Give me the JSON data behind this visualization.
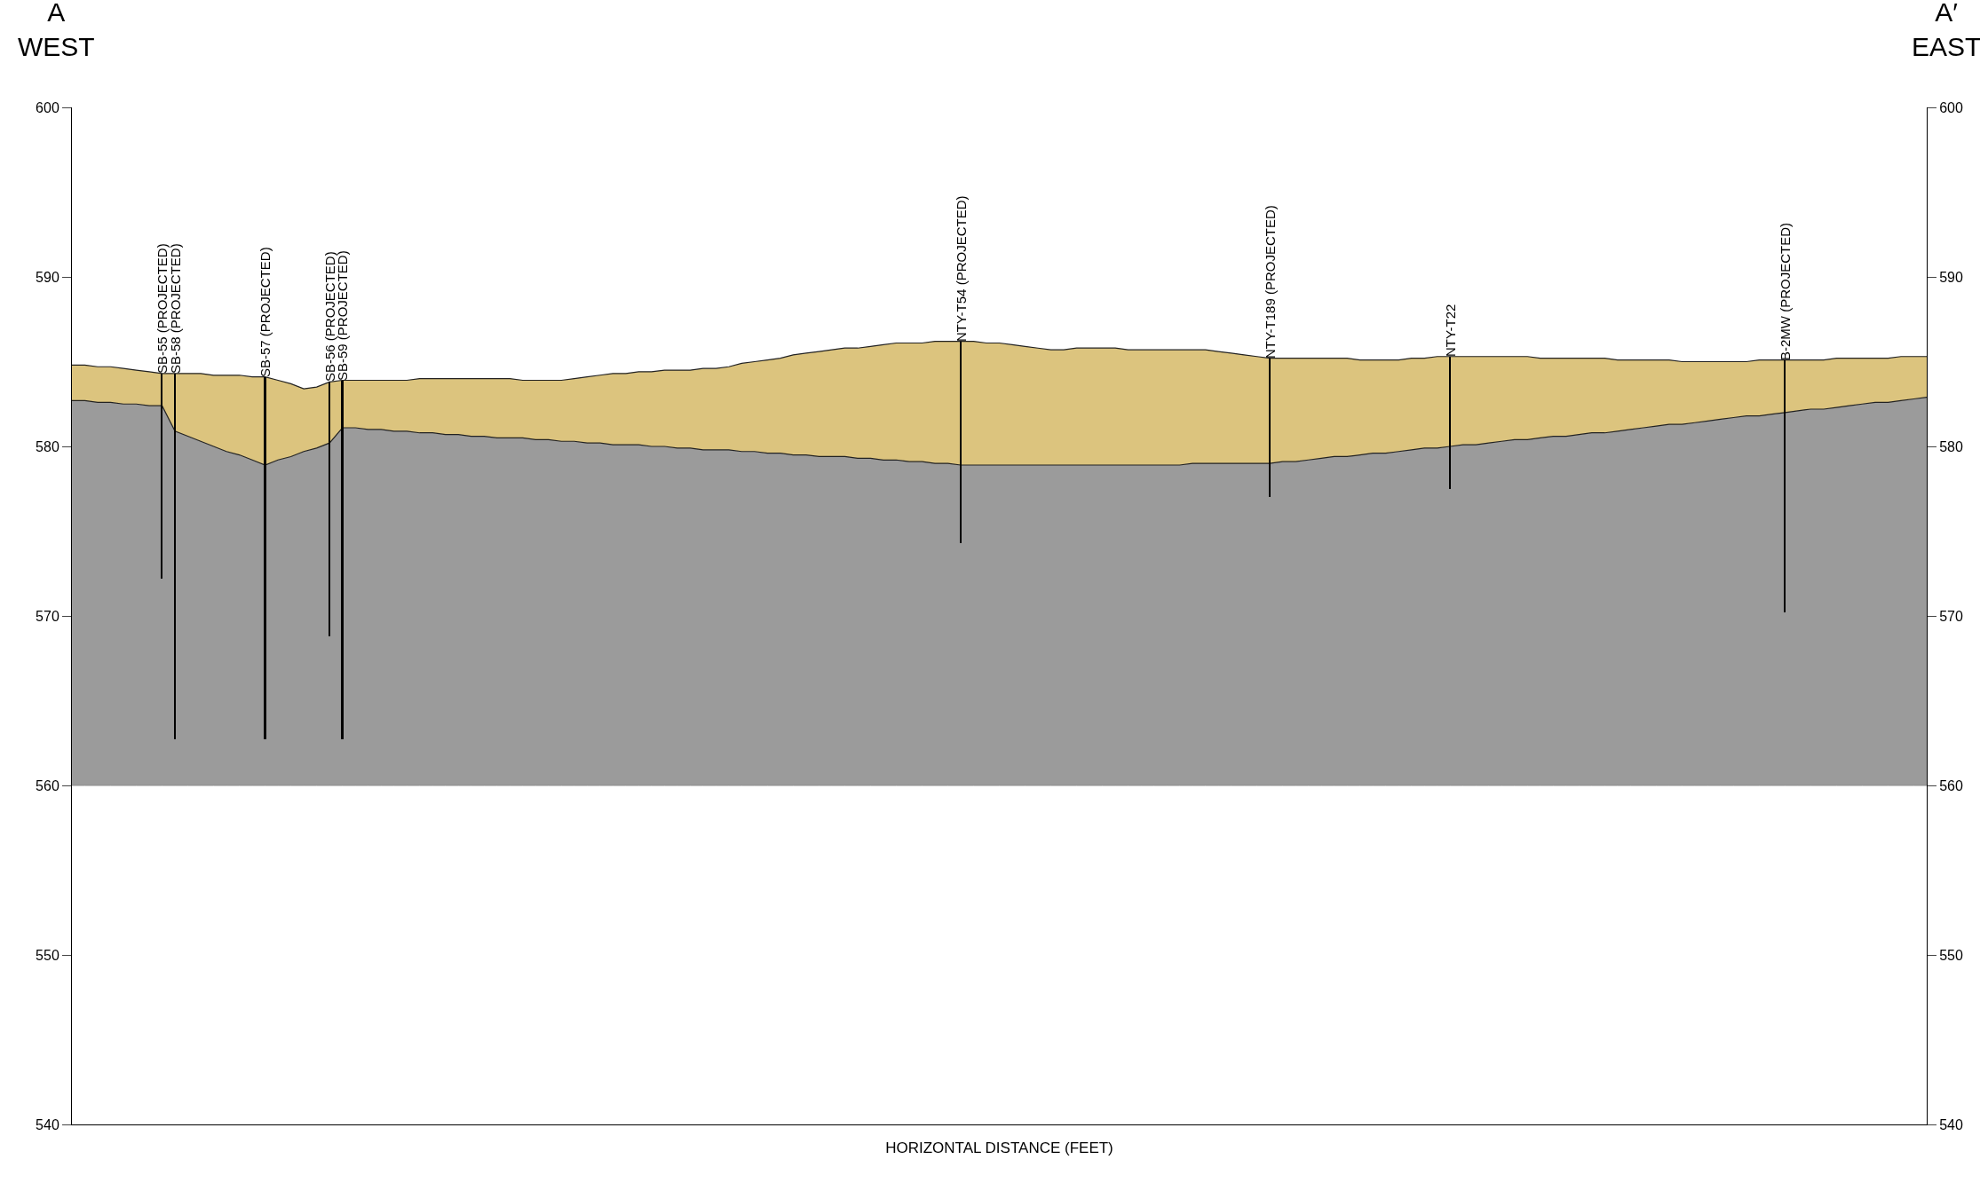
{
  "chart_data": {
    "type": "area",
    "xlabel": "HORIZONTAL DISTANCE (FEET)",
    "annotations": [
      "A\nWEST",
      "A′\nEAST"
    ],
    "categories": [
      null,
      null,
      null,
      null,
      null,
      null,
      null,
      null,
      null,
      null,
      null,
      null,
      null,
      null,
      null,
      null,
      null,
      null,
      null,
      null,
      null,
      null,
      null,
      null,
      null,
      null,
      null,
      null,
      null,
      null,
      null,
      null,
      null,
      null,
      null,
      null,
      null,
      null,
      null,
      null,
      null,
      null,
      null,
      null,
      null,
      null,
      null,
      null,
      null,
      null,
      null,
      null,
      null,
      null,
      null,
      null,
      null,
      null,
      null,
      null,
      null,
      null,
      null,
      null,
      null,
      null,
      null,
      null,
      null,
      null,
      null,
      null,
      null,
      null,
      null,
      null,
      null,
      null,
      null,
      null,
      null,
      null,
      null,
      null,
      null,
      null,
      null,
      null,
      null,
      null,
      null,
      null,
      null,
      null,
      null,
      null,
      null,
      null,
      null,
      null,
      null,
      null,
      null,
      null,
      null,
      null,
      null,
      null,
      null,
      null,
      null,
      null,
      null,
      null,
      null,
      null,
      null,
      null,
      null,
      null,
      null,
      null,
      null,
      null,
      null,
      null,
      null,
      null,
      null,
      null,
      null,
      null,
      null,
      null,
      null,
      null,
      null,
      null,
      null,
      null,
      null,
      null,
      null,
      null,
      null
    ],
    "series": [
      {
        "type": "line",
        "color": "#8c8c8c",
        "values": [
          560,
          560,
          560,
          560,
          560,
          560,
          560,
          560,
          560,
          560,
          560,
          560,
          560,
          560,
          560,
          560,
          560,
          560,
          560,
          560,
          560,
          560,
          560,
          560,
          560,
          560,
          560,
          560,
          560,
          560,
          560,
          560,
          560,
          560,
          560,
          560,
          560,
          560,
          560,
          560,
          560,
          560,
          560,
          560,
          560,
          560,
          560,
          560,
          560,
          560,
          560,
          560,
          560,
          560,
          560,
          560,
          560,
          560,
          560,
          560,
          560,
          560,
          560,
          560,
          560,
          560,
          560,
          560,
          560,
          560,
          560,
          560,
          560,
          560,
          560,
          560,
          560,
          560,
          560,
          560,
          560,
          560,
          560,
          560,
          560,
          560,
          560,
          560,
          560,
          560,
          560,
          560,
          560,
          560,
          560,
          560,
          560,
          560,
          560,
          560,
          560,
          560,
          560,
          560,
          560,
          560,
          560,
          560,
          560,
          560,
          560,
          560,
          560,
          560,
          560,
          560,
          560,
          560,
          560,
          560,
          560,
          560,
          560,
          560,
          560,
          560,
          560,
          560,
          560,
          560,
          560,
          560,
          560,
          560,
          560,
          560,
          560,
          560,
          560,
          560,
          560,
          560,
          560,
          560,
          560
        ]
      },
      {
        "color": "#9b9b9b",
        "values": [
          582.7,
          582.7,
          582.6,
          582.6,
          582.5,
          582.5,
          582.4,
          582.4,
          580.9,
          580.6,
          580.3,
          580.0,
          579.7,
          579.5,
          579.2,
          578.9,
          579.2,
          579.4,
          579.7,
          579.9,
          580.2,
          581.1,
          581.1,
          581.0,
          581.0,
          580.9,
          580.9,
          580.8,
          580.8,
          580.7,
          580.7,
          580.6,
          580.6,
          580.5,
          580.5,
          580.5,
          580.4,
          580.4,
          580.3,
          580.3,
          580.2,
          580.2,
          580.1,
          580.1,
          580.1,
          580.0,
          580.0,
          579.9,
          579.9,
          579.8,
          579.8,
          579.8,
          579.7,
          579.7,
          579.6,
          579.6,
          579.5,
          579.5,
          579.4,
          579.4,
          579.4,
          579.3,
          579.3,
          579.2,
          579.2,
          579.1,
          579.1,
          579.0,
          579.0,
          578.9,
          578.9,
          578.9,
          578.9,
          578.9,
          578.9,
          578.9,
          578.9,
          578.9,
          578.9,
          578.9,
          578.9,
          578.9,
          578.9,
          578.9,
          578.9,
          578.9,
          578.9,
          579.0,
          579.0,
          579.0,
          579.0,
          579.0,
          579.0,
          579.0,
          579.1,
          579.1,
          579.2,
          579.3,
          579.4,
          579.4,
          579.5,
          579.6,
          579.6,
          579.7,
          579.8,
          579.9,
          579.9,
          580.0,
          580.1,
          580.1,
          580.2,
          580.3,
          580.4,
          580.4,
          580.5,
          580.6,
          580.6,
          580.7,
          580.8,
          580.8,
          580.9,
          581.0,
          581.1,
          581.2,
          581.3,
          581.3,
          581.4,
          581.5,
          581.6,
          581.7,
          581.8,
          581.8,
          581.9,
          582.0,
          582.1,
          582.2,
          582.2,
          582.3,
          582.4,
          582.5,
          582.6,
          582.6,
          582.7,
          582.8,
          582.9
        ]
      },
      {
        "color": "#dcc47e",
        "values": [
          584.8,
          584.8,
          584.7,
          584.7,
          584.6,
          584.5,
          584.4,
          584.3,
          584.3,
          584.3,
          584.3,
          584.2,
          584.2,
          584.2,
          584.1,
          584.1,
          583.9,
          583.7,
          583.4,
          583.5,
          583.8,
          583.9,
          583.9,
          583.9,
          583.9,
          583.9,
          583.9,
          584.0,
          584.0,
          584.0,
          584.0,
          584.0,
          584.0,
          584.0,
          584.0,
          583.9,
          583.9,
          583.9,
          583.9,
          584.0,
          584.1,
          584.2,
          584.3,
          584.3,
          584.4,
          584.4,
          584.5,
          584.5,
          584.5,
          584.6,
          584.6,
          584.7,
          584.9,
          585.0,
          585.1,
          585.2,
          585.4,
          585.5,
          585.6,
          585.7,
          585.8,
          585.8,
          585.9,
          586.0,
          586.1,
          586.1,
          586.1,
          586.2,
          586.2,
          586.2,
          586.2,
          586.1,
          586.1,
          586.0,
          585.9,
          585.8,
          585.7,
          585.7,
          585.8,
          585.8,
          585.8,
          585.8,
          585.7,
          585.7,
          585.7,
          585.7,
          585.7,
          585.7,
          585.7,
          585.6,
          585.5,
          585.4,
          585.3,
          585.2,
          585.2,
          585.2,
          585.2,
          585.2,
          585.2,
          585.2,
          585.1,
          585.1,
          585.1,
          585.1,
          585.2,
          585.2,
          585.3,
          585.3,
          585.3,
          585.3,
          585.3,
          585.3,
          585.3,
          585.3,
          585.2,
          585.2,
          585.2,
          585.2,
          585.2,
          585.2,
          585.1,
          585.1,
          585.1,
          585.1,
          585.1,
          585.0,
          585.0,
          585.0,
          585.0,
          585.0,
          585.0,
          585.1,
          585.1,
          585.1,
          585.1,
          585.1,
          585.1,
          585.2,
          585.2,
          585.2,
          585.2,
          585.2,
          585.3,
          585.3,
          585.3
        ]
      },
      {
        "type": "bar",
        "color": "#000000",
        "axis": "y2",
        "base": [
          null,
          null,
          null,
          null,
          null,
          null,
          null,
          572.2,
          562.7,
          null,
          null,
          null,
          null,
          null,
          null,
          562.7,
          null,
          null,
          null,
          null,
          568.8,
          562.7,
          null,
          null,
          null,
          null,
          null,
          null,
          null,
          null,
          null,
          null,
          null,
          null,
          null,
          null,
          null,
          null,
          null,
          null,
          null,
          null,
          null,
          null,
          null,
          null,
          null,
          null,
          null,
          null,
          null,
          null,
          null,
          null,
          null,
          null,
          null,
          null,
          null,
          null,
          null,
          null,
          null,
          null,
          null,
          null,
          null,
          null,
          null,
          574.3,
          null,
          null,
          null,
          null,
          null,
          null,
          null,
          null,
          null,
          null,
          null,
          null,
          null,
          null,
          null,
          null,
          null,
          null,
          null,
          null,
          null,
          null,
          null,
          577.0,
          null,
          null,
          null,
          null,
          null,
          null,
          null,
          null,
          null,
          null,
          null,
          null,
          null,
          577.5,
          null,
          null,
          null,
          null,
          null,
          null,
          null,
          null,
          null,
          null,
          null,
          null,
          null,
          null,
          null,
          null,
          null,
          null,
          null,
          null,
          null,
          null,
          null,
          null,
          null,
          570.2,
          null,
          null,
          null,
          null,
          null,
          null,
          null,
          null,
          null,
          null,
          null
        ],
        "values": [
          null,
          null,
          null,
          null,
          null,
          null,
          null,
          12.1,
          21.6,
          null,
          null,
          null,
          null,
          null,
          null,
          21.4,
          null,
          null,
          null,
          null,
          15.0,
          21.2,
          null,
          null,
          null,
          null,
          null,
          null,
          null,
          null,
          null,
          null,
          null,
          null,
          null,
          null,
          null,
          null,
          null,
          null,
          null,
          null,
          null,
          null,
          null,
          null,
          null,
          null,
          null,
          null,
          null,
          null,
          null,
          null,
          null,
          null,
          null,
          null,
          null,
          null,
          null,
          null,
          null,
          null,
          null,
          null,
          null,
          null,
          null,
          11.9,
          null,
          null,
          null,
          null,
          null,
          null,
          null,
          null,
          null,
          null,
          null,
          null,
          null,
          null,
          null,
          null,
          null,
          null,
          null,
          null,
          null,
          null,
          null,
          8.2,
          null,
          null,
          null,
          null,
          null,
          null,
          null,
          null,
          null,
          null,
          null,
          null,
          null,
          7.8,
          null,
          null,
          null,
          null,
          null,
          null,
          null,
          null,
          null,
          null,
          null,
          null,
          null,
          null,
          null,
          null,
          null,
          null,
          null,
          null,
          null,
          null,
          null,
          null,
          null,
          14.9,
          null,
          null,
          null,
          null,
          null,
          null,
          null,
          null,
          null,
          null,
          null
        ],
        "value_labels": [
          null,
          null,
          null,
          null,
          null,
          null,
          null,
          "SB-55 (PROJECTED)",
          "SB-58 (PROJECTED)",
          null,
          null,
          null,
          null,
          null,
          null,
          "SB-57 (PROJECTED)",
          null,
          null,
          null,
          null,
          "SB-56 (PROJECTED)",
          "SB-59 (PROJECTED)",
          null,
          null,
          null,
          null,
          null,
          null,
          null,
          null,
          null,
          null,
          null,
          null,
          null,
          null,
          null,
          null,
          null,
          null,
          null,
          null,
          null,
          null,
          null,
          null,
          null,
          null,
          null,
          null,
          null,
          null,
          null,
          null,
          null,
          null,
          null,
          null,
          null,
          null,
          null,
          null,
          null,
          null,
          null,
          null,
          null,
          null,
          null,
          "NTY-T54 (PROJECTED)",
          null,
          null,
          null,
          null,
          null,
          null,
          null,
          null,
          null,
          null,
          null,
          null,
          null,
          null,
          null,
          null,
          null,
          null,
          null,
          null,
          null,
          null,
          null,
          "NTY-T189 (PROJECTED)",
          null,
          null,
          null,
          null,
          null,
          null,
          null,
          null,
          null,
          null,
          null,
          null,
          null,
          "NTY-T22",
          null,
          null,
          null,
          null,
          null,
          null,
          null,
          null,
          null,
          null,
          null,
          null,
          null,
          null,
          null,
          null,
          null,
          null,
          null,
          null,
          null,
          null,
          null,
          null,
          null,
          "B-2MW (PROJECTED)",
          null,
          null,
          null,
          null,
          null,
          null,
          null,
          null,
          null,
          null,
          null
        ]
      }
    ],
    "ylim": [
      540,
      600
    ],
    "yticks": [
      540,
      550,
      560,
      570,
      580,
      590,
      600
    ],
    "y2lim": [
      540,
      600
    ],
    "y2ticks": [
      540,
      550,
      560,
      570,
      580,
      590,
      600
    ]
  }
}
